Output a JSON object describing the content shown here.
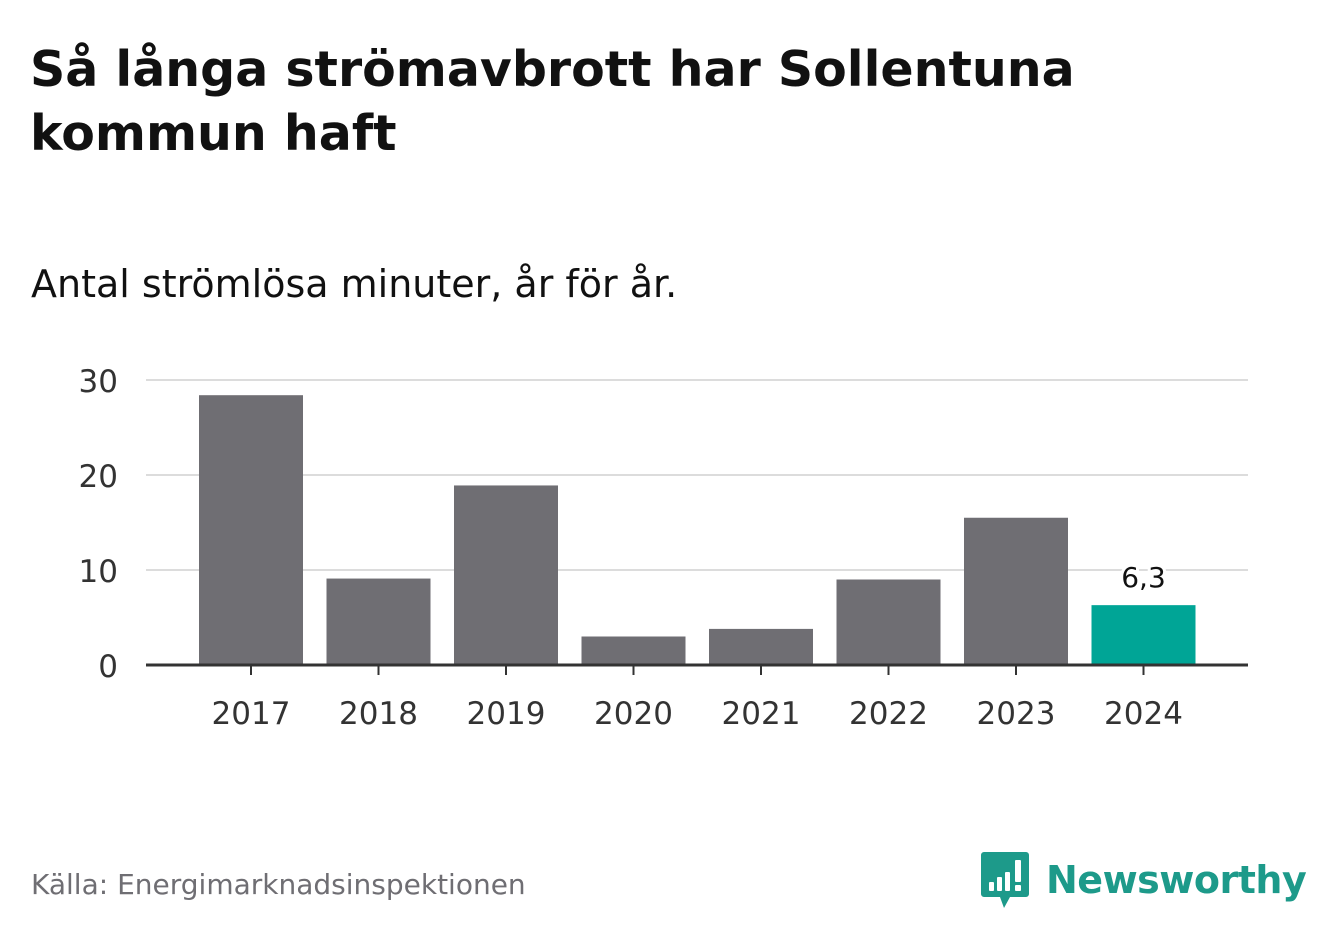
{
  "title": "Så långa strömavbrott har Sollentuna kommun haft",
  "subtitle": "Antal strömlösa minuter, år för år.",
  "source": "Källa: Energimarknadsinspektionen",
  "brand": {
    "name": "Newsworthy",
    "logo_icon": "bar-chart-speech-bubble-icon",
    "color": "#1d9a8a"
  },
  "colors": {
    "bar_default": "#6f6e73",
    "bar_highlight": "#00a596",
    "grid": "#dcdcdc",
    "axis": "#333333"
  },
  "chart_data": {
    "type": "bar",
    "categories": [
      "2017",
      "2018",
      "2019",
      "2020",
      "2021",
      "2022",
      "2023",
      "2024"
    ],
    "values": [
      28.4,
      9.1,
      18.9,
      3.0,
      3.8,
      9.0,
      15.5,
      6.3
    ],
    "highlight_index": 7,
    "data_labels": [
      {
        "index": 7,
        "text": "6,3"
      }
    ],
    "yticks": [
      "0",
      "10",
      "20",
      "30"
    ],
    "ylim": [
      0,
      30
    ],
    "grid": true,
    "legend": "none"
  }
}
